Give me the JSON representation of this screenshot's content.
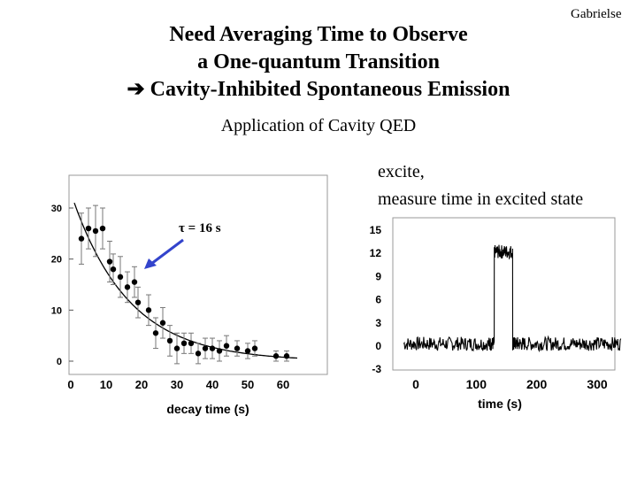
{
  "corner_label": "Gabrielse",
  "title_lines": [
    "Need Averaging Time to Observe",
    "a One-quantum Transition",
    "Cavity-Inhibited Spontaneous Emission"
  ],
  "arrow_glyph": "➔",
  "subtitle": "Application of Cavity QED",
  "notes": [
    "excite,",
    "measure time in excited state"
  ],
  "tau_label": "τ = 16 s",
  "colors": {
    "arrow": "#3344cc",
    "text": "#000000"
  },
  "chart_data": [
    {
      "type": "scatter",
      "xlabel": "decay time (s)",
      "ylabel": "",
      "xlim": [
        0,
        65
      ],
      "ylim": [
        -2,
        34
      ],
      "xticks": [
        0,
        10,
        20,
        30,
        40,
        50,
        60
      ],
      "yticks": [
        0,
        10,
        20,
        30
      ],
      "grid": false,
      "fit": "exponential decay, tau = 16 s",
      "points": [
        {
          "x": 3,
          "y": 24,
          "err": 5
        },
        {
          "x": 5,
          "y": 26,
          "err": 4
        },
        {
          "x": 7,
          "y": 25.5,
          "err": 5
        },
        {
          "x": 9,
          "y": 26,
          "err": 4
        },
        {
          "x": 11,
          "y": 19.5,
          "err": 4
        },
        {
          "x": 12,
          "y": 18,
          "err": 3
        },
        {
          "x": 14,
          "y": 16.5,
          "err": 4
        },
        {
          "x": 16,
          "y": 14.5,
          "err": 3
        },
        {
          "x": 18,
          "y": 15.5,
          "err": 3
        },
        {
          "x": 19,
          "y": 11.5,
          "err": 3
        },
        {
          "x": 22,
          "y": 10,
          "err": 3
        },
        {
          "x": 24,
          "y": 5.5,
          "err": 3
        },
        {
          "x": 26,
          "y": 7.5,
          "err": 3
        },
        {
          "x": 28,
          "y": 4,
          "err": 3
        },
        {
          "x": 30,
          "y": 2.5,
          "err": 3
        },
        {
          "x": 32,
          "y": 3.5,
          "err": 2
        },
        {
          "x": 34,
          "y": 3.5,
          "err": 2
        },
        {
          "x": 36,
          "y": 1.5,
          "err": 2
        },
        {
          "x": 38,
          "y": 2.5,
          "err": 2
        },
        {
          "x": 40,
          "y": 2.5,
          "err": 2
        },
        {
          "x": 42,
          "y": 2,
          "err": 2
        },
        {
          "x": 44,
          "y": 3,
          "err": 2
        },
        {
          "x": 47,
          "y": 2.5,
          "err": 1.5
        },
        {
          "x": 50,
          "y": 2,
          "err": 1.5
        },
        {
          "x": 52,
          "y": 2.5,
          "err": 1.5
        },
        {
          "x": 58,
          "y": 1,
          "err": 1
        },
        {
          "x": 61,
          "y": 1,
          "err": 1
        }
      ]
    },
    {
      "type": "line",
      "xlabel": "time (s)",
      "ylabel": "",
      "xlim": [
        -40,
        350
      ],
      "ylim": [
        -3,
        15
      ],
      "xticks": [
        0,
        100,
        200,
        300
      ],
      "yticks": [
        15,
        12,
        9,
        6,
        3,
        0,
        -3
      ],
      "grid": false,
      "x": [
        -20,
        0,
        20,
        40,
        60,
        80,
        100,
        120,
        127,
        130,
        140,
        150,
        160,
        162,
        170,
        180,
        200,
        220,
        240,
        260,
        280,
        300,
        320,
        340
      ],
      "y": [
        0,
        0.5,
        -0.3,
        0.6,
        0.2,
        0.4,
        -0.2,
        0.3,
        0.5,
        12,
        12.5,
        12,
        12.3,
        0.6,
        0.4,
        -0.2,
        0.3,
        0.5,
        0.1,
        0.4,
        -0.1,
        0.2,
        0.5,
        0.3
      ]
    }
  ]
}
